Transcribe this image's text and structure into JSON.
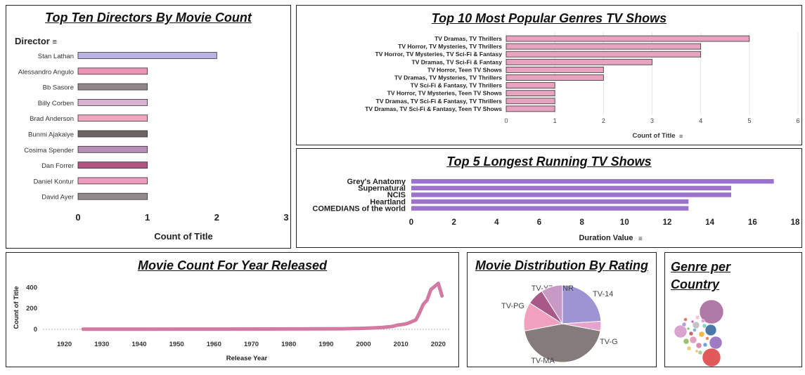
{
  "colors": {
    "directors": [
      "#b9b3e6",
      "#ee93b4",
      "#8f8789",
      "#dbb2d3",
      "#f2a7c0",
      "#6e6466",
      "#b78fb6",
      "#b0547f",
      "#f09bbd",
      "#948a8c"
    ],
    "genres": "#e7a3bf",
    "shows": "#9c72cf",
    "years": "#d27aa2",
    "rating": {
      "TV-14": "#9e93d3",
      "TV-G": "#e7a3ce",
      "TV-MA": "#857b7b",
      "TV-PG": "#f1a0bd",
      "TV-Y7": "#a85988",
      "NR": "#c899c4"
    }
  },
  "chart_data": [
    {
      "type": "bar",
      "orientation": "horizontal",
      "title": "Top Ten Directors By Movie Count",
      "category_header": "Director",
      "xlabel": "Count of Title",
      "xlim": [
        0,
        3
      ],
      "xticks": [
        0,
        1,
        2,
        3
      ],
      "categories": [
        "Stan Lathan",
        "Alessandro Angulo",
        "Bb Sasore",
        "Billy Corben",
        "Brad Anderson",
        "Bunmi Ajakaiye",
        "Cosima Spender",
        "Dan Forrer",
        "Daniel Kontur",
        "David Ayer"
      ],
      "values": [
        2,
        1,
        1,
        1,
        1,
        1,
        1,
        1,
        1,
        1
      ]
    },
    {
      "type": "bar",
      "orientation": "horizontal",
      "title": "Top 10 Most Popular Genres  TV Shows",
      "xlabel": "Count of Title",
      "xlim": [
        0,
        6
      ],
      "xticks": [
        0,
        1,
        2,
        3,
        4,
        5,
        6
      ],
      "grid": true,
      "categories": [
        "TV Dramas, TV Thrillers",
        "TV Horror, TV Mysteries, TV Thrillers",
        "TV Horror, TV Mysteries, TV Sci-Fi & Fantasy",
        "TV Dramas, TV Sci-Fi & Fantasy",
        "TV Horror, Teen TV Shows",
        "TV Dramas, TV Mysteries, TV Thrillers",
        "TV Sci-Fi & Fantasy, TV Thrillers",
        "TV Horror, TV Mysteries, Teen TV Shows",
        "TV Dramas, TV Sci-Fi & Fantasy, TV Thrillers",
        "TV Dramas, TV Sci-Fi & Fantasy, Teen TV Shows"
      ],
      "values": [
        5,
        4,
        4,
        3,
        2,
        2,
        1,
        1,
        1,
        1
      ]
    },
    {
      "type": "bar",
      "orientation": "horizontal",
      "title": "Top 5 Longest Running TV Shows",
      "xlabel": "Duration Value",
      "xlim": [
        0,
        18
      ],
      "xticks": [
        0,
        2,
        4,
        6,
        8,
        10,
        12,
        14,
        16,
        18
      ],
      "categories": [
        "Grey's Anatomy",
        "Supernatural",
        "NCIS",
        "Heartland",
        "COMEDIANS of the world"
      ],
      "values": [
        17,
        15,
        15,
        13,
        13
      ]
    },
    {
      "type": "line",
      "title": "Movie Count For Year Released",
      "xlabel": "Release Year",
      "ylabel": "Count of Title",
      "xlim": [
        1915,
        2025
      ],
      "ylim": [
        0,
        450
      ],
      "xticks": [
        1920,
        1930,
        1940,
        1950,
        1960,
        1970,
        1980,
        1990,
        2000,
        2010,
        2020
      ],
      "yticks": [
        0,
        200,
        400
      ],
      "x": [
        1925,
        1940,
        1960,
        1980,
        1990,
        1995,
        2000,
        2003,
        2005,
        2007,
        2008,
        2009,
        2010,
        2011,
        2012,
        2013,
        2014,
        2015,
        2016,
        2017,
        2018,
        2019,
        2020,
        2021
      ],
      "y": [
        2,
        2,
        3,
        4,
        5,
        6,
        10,
        14,
        18,
        25,
        30,
        40,
        45,
        50,
        60,
        75,
        90,
        160,
        240,
        280,
        380,
        410,
        440,
        320
      ]
    },
    {
      "type": "pie",
      "title": "Movie Distribution By Rating",
      "labels": [
        "TV-14",
        "TV-G",
        "TV-MA",
        "TV-PG",
        "TV-Y7",
        "NR"
      ],
      "values": [
        24,
        4,
        44,
        12,
        7,
        9
      ]
    },
    {
      "type": "scatter",
      "title": "Genre per Country"
    }
  ]
}
